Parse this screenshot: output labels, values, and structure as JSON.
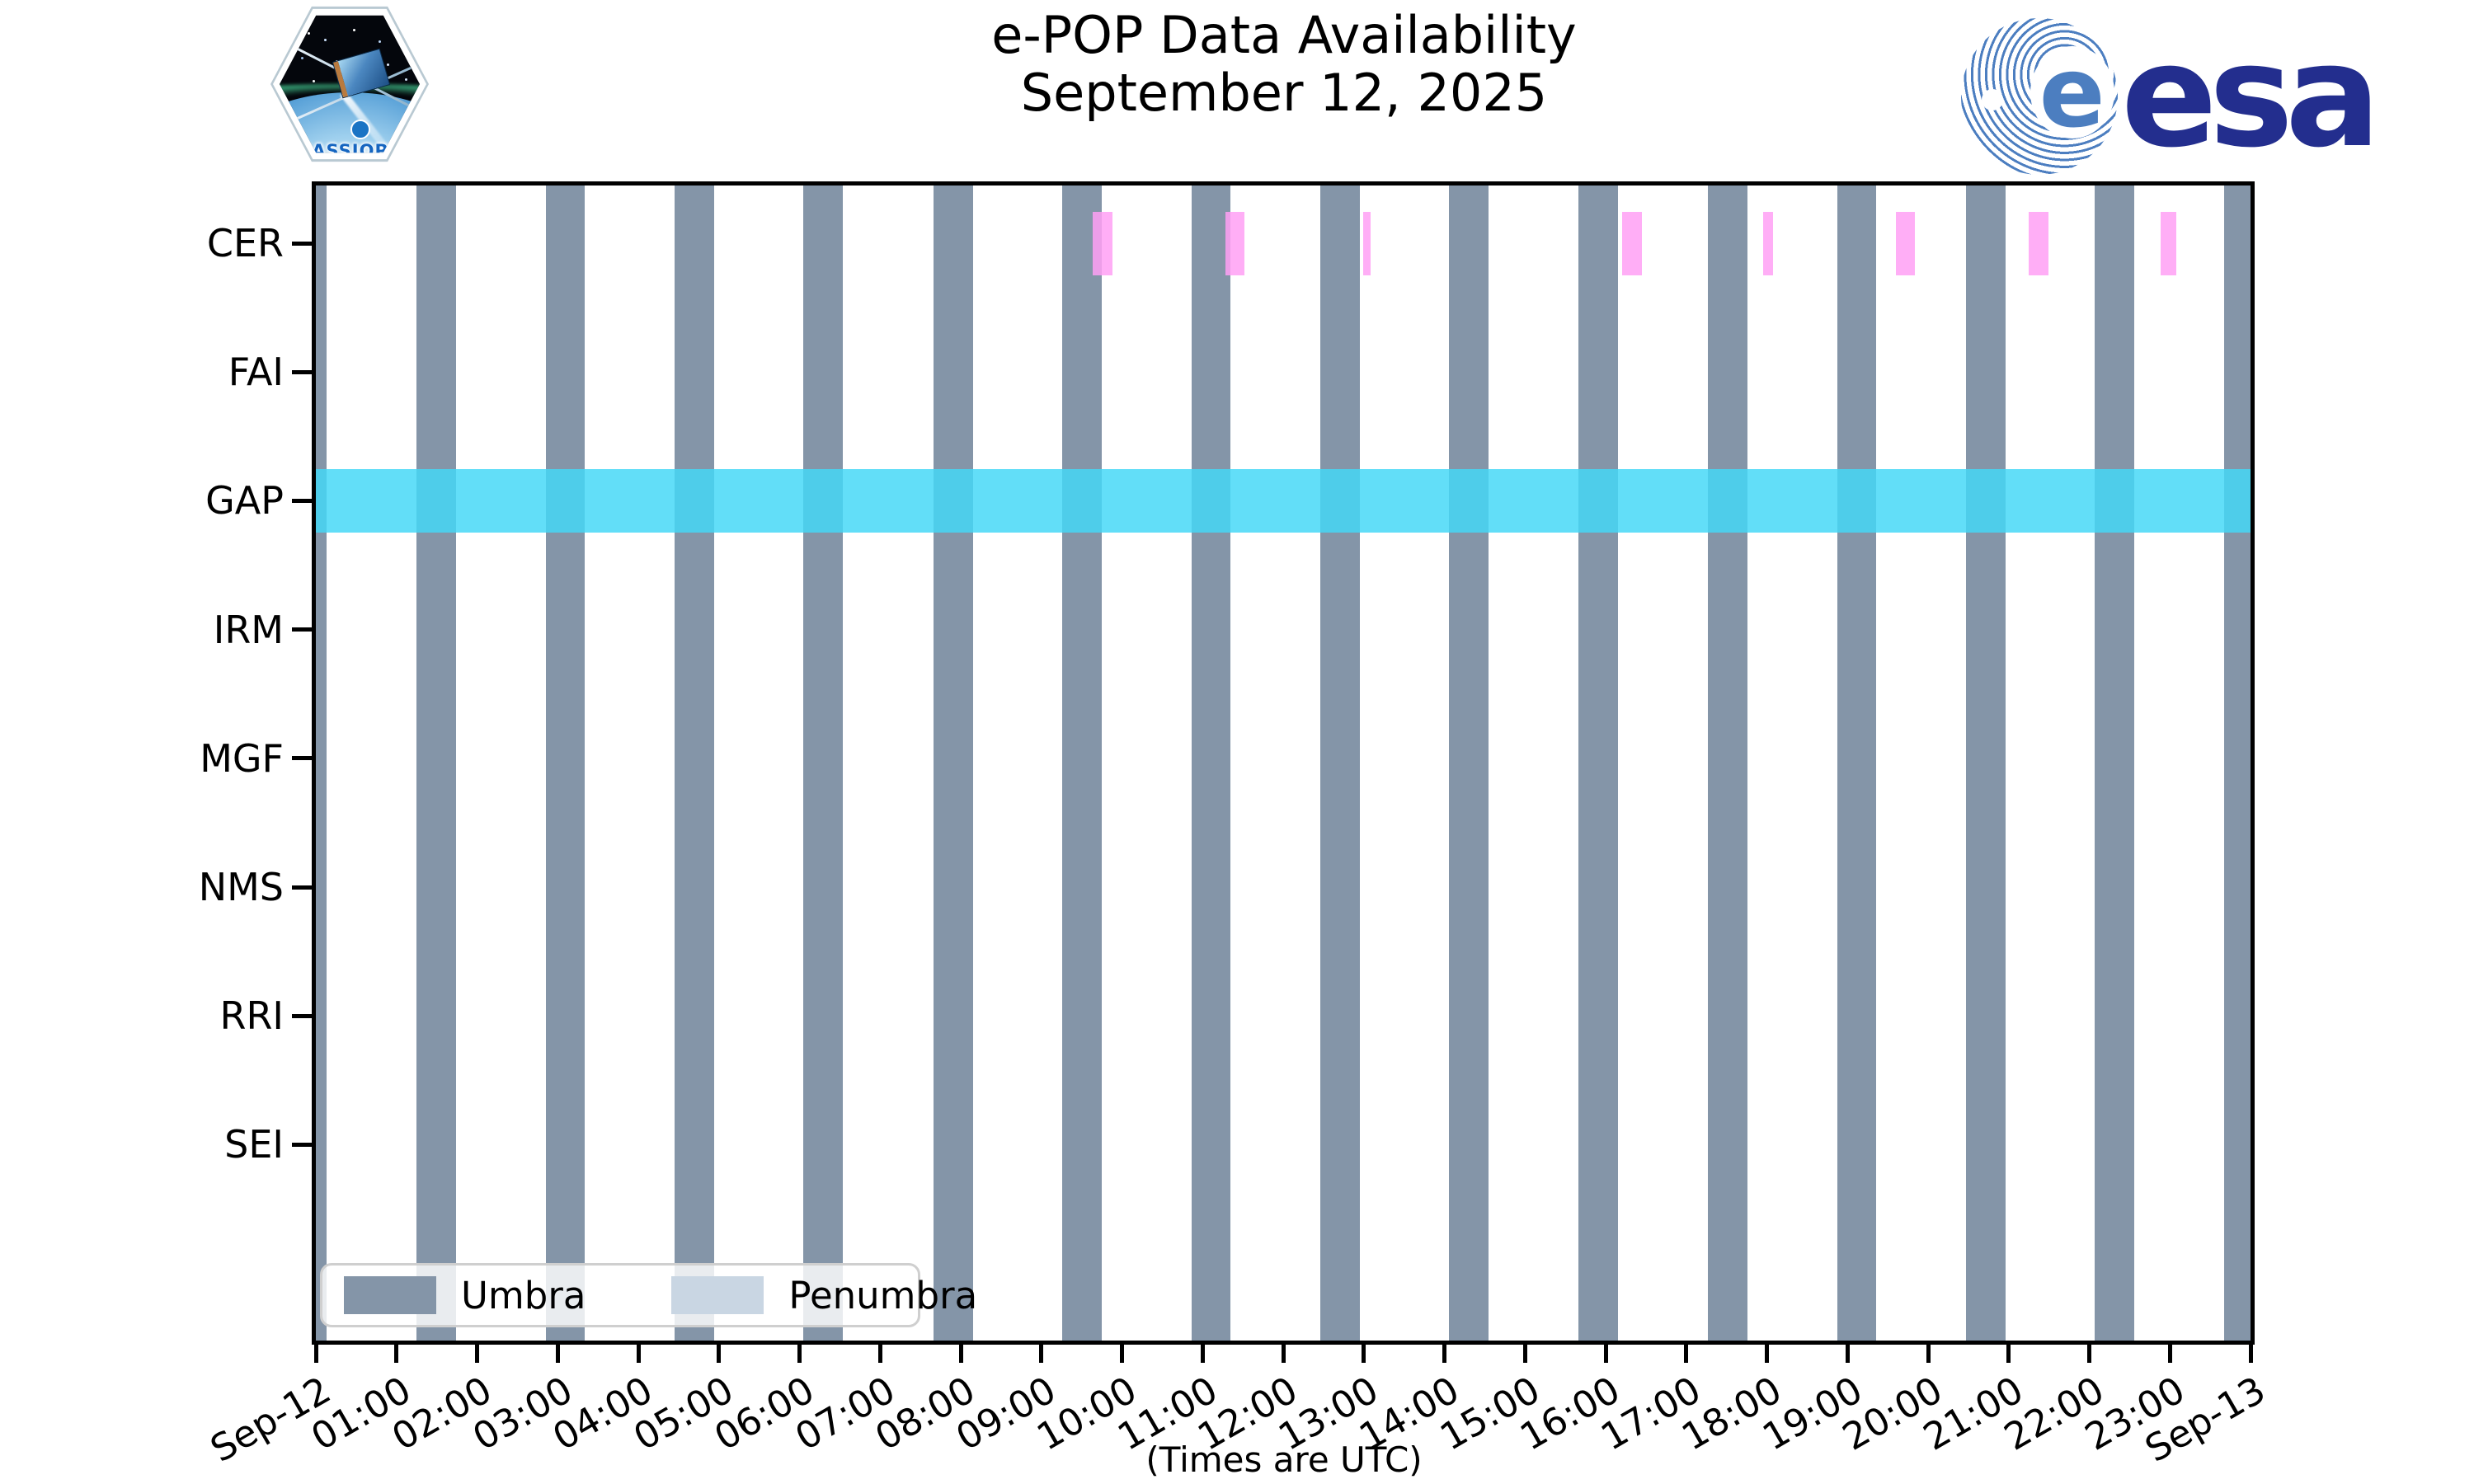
{
  "header": {
    "cassiope_patch_text": "CASSIOPE",
    "esa_ball_letter": "e",
    "esa_wordmark": "esa"
  },
  "footer": {
    "times_note": "(Times are UTC)"
  },
  "legend": {
    "umbra_label": "Umbra",
    "penumbra_label": "Penumbra"
  },
  "colors": {
    "umbra": "#8495A8",
    "penumbra": "#C9D6E3",
    "gap_band": "rgba(68,216,247,0.84)",
    "cer_event": "rgba(255,160,245,0.85)",
    "axis": "#000000",
    "esa_navy": "#232E8E",
    "esa_light_blue": "#4C7EC0",
    "patch_text_blue": "#1565C0"
  },
  "chart_data": {
    "type": "availability-timeline",
    "title": "e-POP Data Availability",
    "subtitle": "September 12, 2025",
    "instruments": [
      "CER",
      "FAI",
      "GAP",
      "IRM",
      "MGF",
      "NMS",
      "RRI",
      "SEI"
    ],
    "x_axis": {
      "unit": "hours UTC",
      "range": [
        0,
        24
      ],
      "tick_labels": [
        "Sep-12",
        "01:00",
        "02:00",
        "03:00",
        "04:00",
        "05:00",
        "06:00",
        "07:00",
        "08:00",
        "09:00",
        "10:00",
        "11:00",
        "12:00",
        "13:00",
        "14:00",
        "15:00",
        "16:00",
        "17:00",
        "18:00",
        "19:00",
        "20:00",
        "21:00",
        "22:00",
        "23:00",
        "Sep-13"
      ]
    },
    "umbra_intervals_hours": [
      [
        0.0,
        0.13
      ],
      [
        1.25,
        1.74
      ],
      [
        2.85,
        3.34
      ],
      [
        4.45,
        4.94
      ],
      [
        6.05,
        6.54
      ],
      [
        7.66,
        8.15
      ],
      [
        9.26,
        9.75
      ],
      [
        10.86,
        11.35
      ],
      [
        12.46,
        12.95
      ],
      [
        14.06,
        14.55
      ],
      [
        15.66,
        16.15
      ],
      [
        17.27,
        17.76
      ],
      [
        18.87,
        19.36
      ],
      [
        20.47,
        20.96
      ],
      [
        22.07,
        22.56
      ],
      [
        23.67,
        24.0
      ]
    ],
    "penumbra_intervals_hours": [],
    "gap_data_band": {
      "instrument": "GAP",
      "interval_hours": [
        0,
        24
      ]
    },
    "cer_data_intervals_hours": [
      [
        9.64,
        9.88
      ],
      [
        11.28,
        11.52
      ],
      [
        12.99,
        13.08
      ],
      [
        16.2,
        16.45
      ],
      [
        17.95,
        18.08
      ],
      [
        19.6,
        19.84
      ],
      [
        21.25,
        21.49
      ],
      [
        22.88,
        23.08
      ]
    ],
    "legend_position": "lower left inside axes",
    "grid": false
  }
}
